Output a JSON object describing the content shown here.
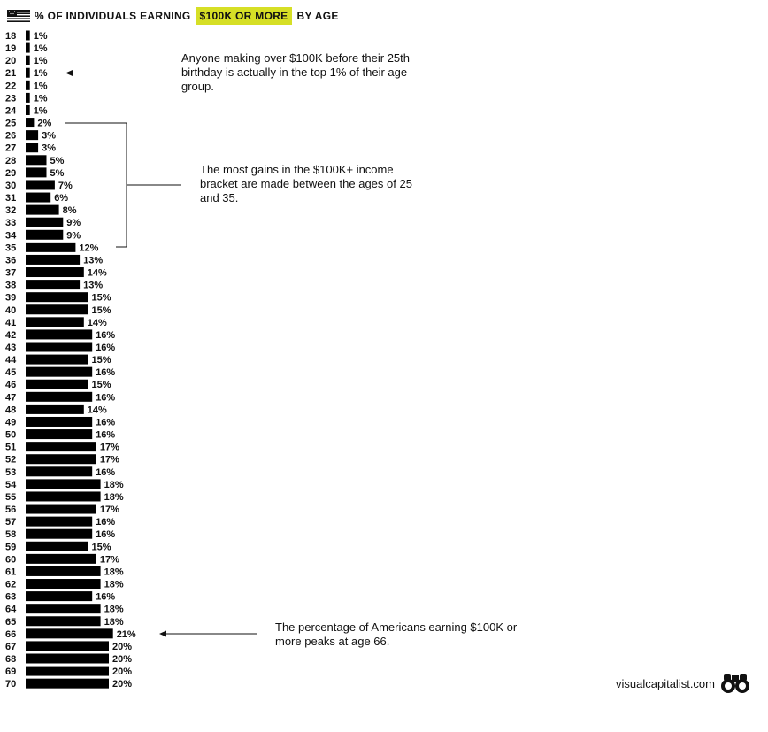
{
  "header": {
    "title_prefix": "% OF INDIVIDUALS EARNING",
    "title_highlight": "$100K OR MORE",
    "title_suffix": "BY AGE",
    "flag_icon": "us-flag-icon",
    "highlight_color": "#d6df26"
  },
  "annotations": [
    "Anyone making over $100K before their 25th birthday is actually in the top 1% of their age group.",
    "The most gains in the $100K+ income bracket are made between the ages of 25 and 35.",
    "The percentage of Americans earning $100K or more peaks at age 66."
  ],
  "footer": {
    "site": "visualcapitalist.com",
    "logo_icon": "binoculars-logo-icon"
  },
  "chart_data": {
    "type": "bar",
    "orientation": "horizontal",
    "bar_color": "#000000",
    "categories": [
      "18",
      "19",
      "20",
      "21",
      "22",
      "23",
      "24",
      "25",
      "26",
      "27",
      "28",
      "29",
      "30",
      "31",
      "32",
      "33",
      "34",
      "35",
      "36",
      "37",
      "38",
      "39",
      "40",
      "41",
      "42",
      "43",
      "44",
      "45",
      "46",
      "47",
      "48",
      "49",
      "50",
      "51",
      "52",
      "53",
      "54",
      "55",
      "56",
      "57",
      "58",
      "59",
      "60",
      "61",
      "62",
      "63",
      "64",
      "65",
      "66",
      "67",
      "68",
      "69",
      "70"
    ],
    "values": [
      1,
      1,
      1,
      1,
      1,
      1,
      1,
      2,
      3,
      3,
      5,
      5,
      7,
      6,
      8,
      9,
      9,
      12,
      13,
      14,
      13,
      15,
      15,
      14,
      16,
      16,
      15,
      16,
      15,
      16,
      14,
      16,
      16,
      17,
      17,
      16,
      18,
      18,
      17,
      16,
      16,
      15,
      17,
      18,
      18,
      16,
      18,
      18,
      21,
      20,
      20,
      20,
      20
    ],
    "labels": [
      "1%",
      "1%",
      "1%",
      "1%",
      "1%",
      "1%",
      "1%",
      "2%",
      "3%",
      "3%",
      "5%",
      "5%",
      "7%",
      "6%",
      "8%",
      "9%",
      "9%",
      "12%",
      "13%",
      "14%",
      "13%",
      "15%",
      "15%",
      "14%",
      "16%",
      "16%",
      "15%",
      "16%",
      "15%",
      "16%",
      "14%",
      "16%",
      "16%",
      "17%",
      "17%",
      "16%",
      "18%",
      "18%",
      "17%",
      "16%",
      "16%",
      "15%",
      "17%",
      "18%",
      "18%",
      "16%",
      "18%",
      "18%",
      "21%",
      "20%",
      "20%",
      "20%",
      "20%"
    ],
    "title": "% OF INDIVIDUALS EARNING $100K OR MORE BY AGE"
  }
}
